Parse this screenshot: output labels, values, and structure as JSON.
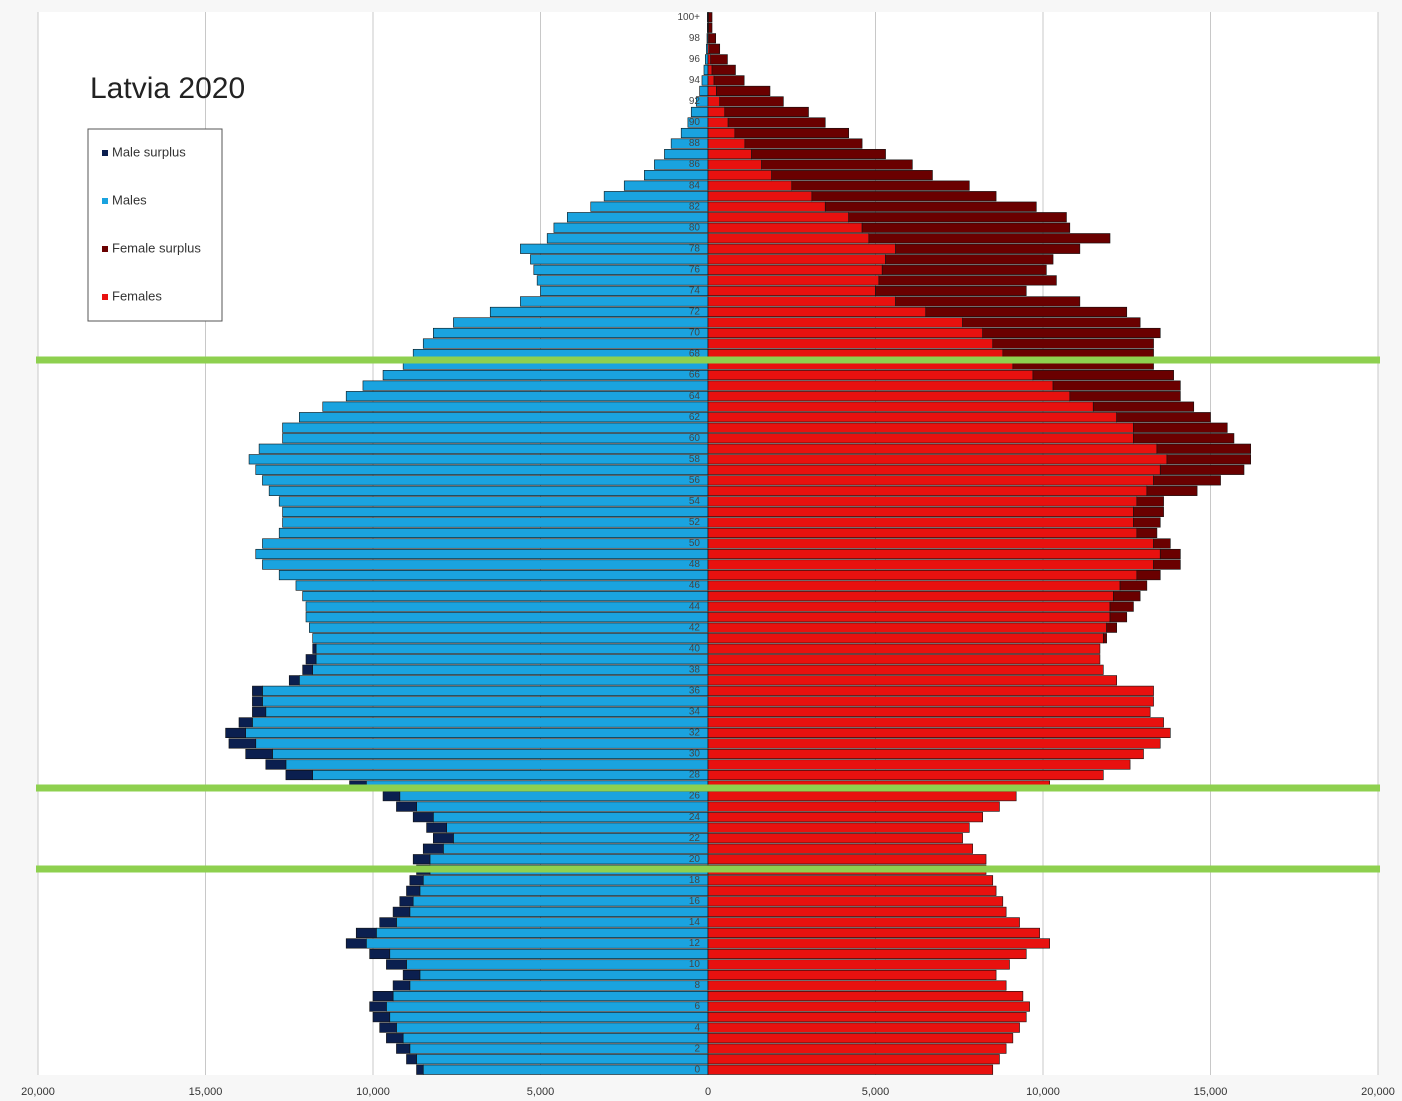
{
  "chart_data": {
    "type": "population-pyramid",
    "title": "Latvia 2020",
    "legend": "upper left",
    "grid": true,
    "categories": [
      "0",
      null,
      "2",
      null,
      "4",
      null,
      "6",
      null,
      "8",
      null,
      "10",
      null,
      "12",
      null,
      "14",
      null,
      "16",
      null,
      "18",
      null,
      "20",
      null,
      "22",
      null,
      "24",
      null,
      "26",
      null,
      "28",
      null,
      "30",
      null,
      "32",
      null,
      "34",
      null,
      "36",
      null,
      "38",
      null,
      "40",
      null,
      "42",
      null,
      "44",
      null,
      "46",
      null,
      "48",
      null,
      "50",
      null,
      "52",
      null,
      "54",
      null,
      "56",
      null,
      "58",
      null,
      "60",
      null,
      "62",
      null,
      "64",
      null,
      "66",
      null,
      "68",
      null,
      "70",
      null,
      "72",
      null,
      "74",
      null,
      "76",
      null,
      "78",
      null,
      "80",
      null,
      "82",
      null,
      "84",
      null,
      "86",
      null,
      "88",
      null,
      "90",
      null,
      "92",
      null,
      "94",
      null,
      "96",
      null,
      "98",
      null,
      "100+"
    ],
    "xlim": [
      -20000,
      20000
    ],
    "xticks": [
      {
        "value": -20000,
        "label": "20,000"
      },
      {
        "value": -15000,
        "label": "15,000"
      },
      {
        "value": -10000,
        "label": "10,000"
      },
      {
        "value": -5000,
        "label": "5,000"
      },
      0,
      {
        "value": 5000,
        "label": "5,000"
      },
      {
        "value": 10000,
        "label": "10,000"
      },
      {
        "value": 15000,
        "label": "15,000"
      },
      {
        "value": 20000,
        "label": "20,000"
      }
    ],
    "series": [
      {
        "name": "Male surplus",
        "color": "#0b1f4f",
        "side": "left",
        "values": [
          200,
          300,
          400,
          500,
          500,
          500,
          500,
          600,
          500,
          500,
          600,
          600,
          600,
          600,
          500,
          500,
          400,
          400,
          400,
          400,
          500,
          600,
          600,
          600,
          600,
          600,
          500,
          500,
          800,
          600,
          800,
          800,
          600,
          400,
          400,
          300,
          300,
          300,
          300,
          300,
          100,
          0,
          0,
          0,
          0,
          0,
          0,
          0,
          0,
          0,
          0,
          0,
          0,
          0,
          0,
          0,
          0,
          0,
          0,
          0,
          0,
          0,
          0,
          0,
          0,
          0,
          0,
          0,
          0,
          0,
          0,
          0,
          0,
          0,
          0,
          0,
          0,
          0,
          0,
          0,
          0,
          0,
          0,
          0,
          0,
          0,
          0,
          0,
          0,
          0,
          0,
          0,
          0,
          0,
          0,
          0,
          0,
          0,
          0,
          0,
          0
        ]
      },
      {
        "name": "Males",
        "color": "#1aa3df",
        "side": "left",
        "values": [
          8500,
          8700,
          8900,
          9100,
          9300,
          9500,
          9600,
          9400,
          8900,
          8600,
          9000,
          9500,
          10200,
          9900,
          9300,
          8900,
          8800,
          8600,
          8500,
          8300,
          8300,
          7900,
          7600,
          7800,
          8200,
          8700,
          9200,
          10200,
          11800,
          12600,
          13000,
          13500,
          13800,
          13600,
          13200,
          13300,
          13300,
          12200,
          11800,
          11700,
          11700,
          11800,
          11900,
          12000,
          12000,
          12100,
          12300,
          12800,
          13300,
          13500,
          13300,
          12800,
          12700,
          12700,
          12800,
          13100,
          13300,
          13500,
          13700,
          13400,
          12700,
          12700,
          12200,
          11500,
          10800,
          10300,
          9700,
          9100,
          8800,
          8500,
          8200,
          7600,
          6500,
          5600,
          5000,
          5100,
          5200,
          5300,
          5600,
          4800,
          4600,
          4200,
          3500,
          3100,
          2500,
          1900,
          1600,
          1300,
          1100,
          800,
          600,
          500,
          350,
          250,
          180,
          120,
          80,
          50,
          30,
          20,
          20
        ]
      },
      {
        "name": "Female surplus",
        "color": "#6a0000",
        "side": "right",
        "values": [
          0,
          0,
          0,
          0,
          0,
          0,
          0,
          0,
          0,
          0,
          0,
          0,
          0,
          0,
          0,
          0,
          0,
          0,
          0,
          0,
          0,
          0,
          0,
          0,
          0,
          0,
          0,
          0,
          0,
          0,
          0,
          0,
          0,
          0,
          0,
          0,
          0,
          0,
          0,
          0,
          0,
          100,
          300,
          500,
          700,
          800,
          800,
          700,
          800,
          600,
          500,
          600,
          800,
          900,
          800,
          1500,
          2000,
          2500,
          2500,
          2800,
          3000,
          2800,
          2800,
          3000,
          3300,
          3800,
          4200,
          4200,
          4500,
          4800,
          5300,
          5300,
          6000,
          5500,
          4500,
          5300,
          4900,
          5000,
          5500,
          7200,
          6200,
          6500,
          6300,
          5500,
          5300,
          4800,
          4500,
          4000,
          3500,
          3400,
          2900,
          2500,
          1900,
          1600,
          900,
          700,
          500,
          300,
          200,
          100,
          100
        ]
      },
      {
        "name": "Females",
        "color": "#e8110f",
        "side": "right",
        "values": [
          8500,
          8700,
          8900,
          9100,
          9300,
          9500,
          9600,
          9400,
          8900,
          8600,
          9000,
          9500,
          10200,
          9900,
          9300,
          8900,
          8800,
          8600,
          8500,
          8300,
          8300,
          7900,
          7600,
          7800,
          8200,
          8700,
          9200,
          10200,
          11800,
          12600,
          13000,
          13500,
          13800,
          13600,
          13200,
          13300,
          13300,
          12200,
          11800,
          11700,
          11700,
          11800,
          11900,
          12000,
          12000,
          12100,
          12300,
          12800,
          13300,
          13500,
          13300,
          12800,
          12700,
          12700,
          12800,
          13100,
          13300,
          13500,
          13700,
          13400,
          12700,
          12700,
          12200,
          11500,
          10800,
          10300,
          9700,
          9100,
          8800,
          8500,
          8200,
          7600,
          6500,
          5600,
          5000,
          5100,
          5200,
          5300,
          5600,
          4800,
          4600,
          4200,
          3500,
          3100,
          2500,
          1900,
          1600,
          1300,
          1100,
          800,
          600,
          500,
          350,
          250,
          180,
          120,
          80,
          50,
          30,
          20,
          20
        ]
      }
    ]
  }
}
